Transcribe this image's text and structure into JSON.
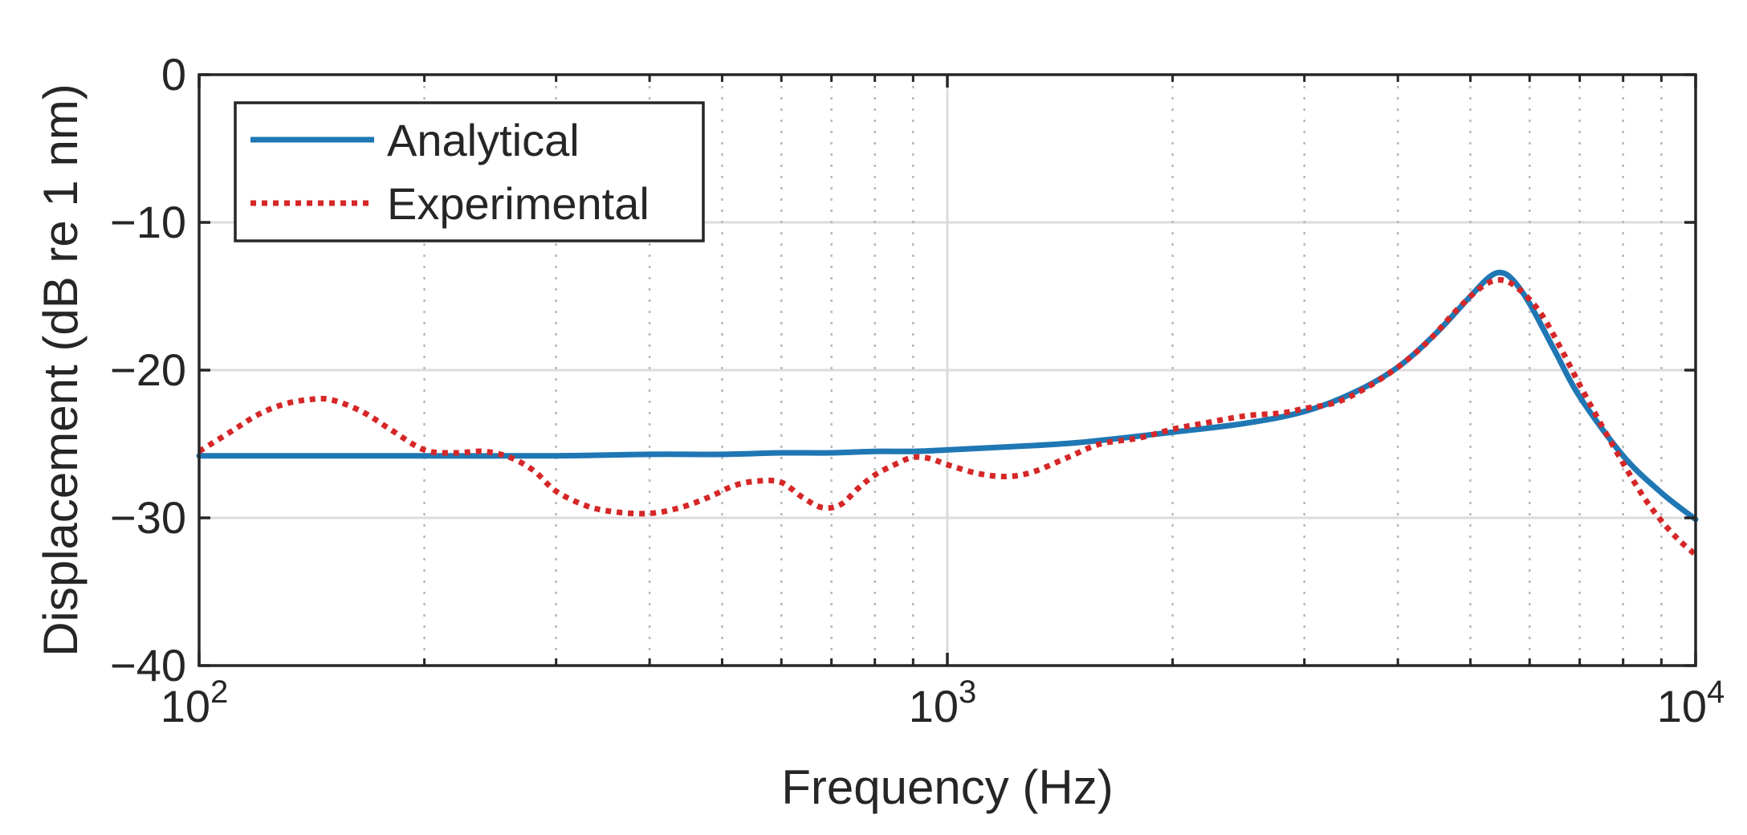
{
  "chart_data": {
    "type": "line",
    "title": "",
    "xlabel": "Frequency (Hz)",
    "ylabel": "Displacement (dB re 1 nm)",
    "xscale": "log",
    "xlim": [
      100,
      10000
    ],
    "ylim": [
      -40,
      0
    ],
    "grid": true,
    "legend_position": "top-left",
    "x_ticks": [
      {
        "value": 100,
        "base": "10",
        "exp": "2"
      },
      {
        "value": 1000,
        "base": "10",
        "exp": "3"
      },
      {
        "value": 10000,
        "base": "10",
        "exp": "4"
      }
    ],
    "y_ticks": [
      {
        "value": 0,
        "label": "0"
      },
      {
        "value": -10,
        "label": "−10"
      },
      {
        "value": -20,
        "label": "−20"
      },
      {
        "value": -30,
        "label": "−30"
      },
      {
        "value": -40,
        "label": "−40"
      }
    ],
    "series": [
      {
        "name": "Analytical",
        "color": "#1f77b4",
        "style": "solid",
        "x": [
          100,
          150,
          200,
          300,
          400,
          500,
          600,
          700,
          800,
          900,
          1000,
          1200,
          1500,
          2000,
          2500,
          3000,
          3500,
          4000,
          4500,
          5000,
          5300,
          5500,
          5700,
          6000,
          6500,
          7000,
          8000,
          9000,
          10000
        ],
        "y": [
          -25.8,
          -25.8,
          -25.8,
          -25.8,
          -25.7,
          -25.7,
          -25.6,
          -25.6,
          -25.5,
          -25.5,
          -25.4,
          -25.2,
          -24.9,
          -24.2,
          -23.6,
          -22.8,
          -21.5,
          -19.8,
          -17.5,
          -15.0,
          -13.7,
          -13.4,
          -13.9,
          -15.5,
          -18.8,
          -21.8,
          -25.8,
          -28.3,
          -30.1
        ]
      },
      {
        "name": "Experimental",
        "color": "#d62728",
        "style": "dotted",
        "x": [
          100,
          110,
          120,
          130,
          140,
          150,
          165,
          180,
          200,
          220,
          240,
          260,
          280,
          300,
          330,
          360,
          400,
          440,
          480,
          520,
          560,
          600,
          640,
          680,
          720,
          760,
          800,
          850,
          900,
          950,
          1000,
          1100,
          1200,
          1300,
          1450,
          1600,
          1800,
          2000,
          2200,
          2500,
          2800,
          3000,
          3300,
          3600,
          4000,
          4400,
          4800,
          5200,
          5500,
          5800,
          6200,
          6600,
          7000,
          7500,
          8000,
          8500,
          9000,
          9500,
          10000
        ],
        "y": [
          -25.5,
          -24.2,
          -23.0,
          -22.3,
          -22.0,
          -22.0,
          -22.8,
          -24.0,
          -25.4,
          -25.6,
          -25.5,
          -25.9,
          -26.8,
          -28.2,
          -29.2,
          -29.6,
          -29.7,
          -29.3,
          -28.6,
          -27.8,
          -27.5,
          -27.6,
          -28.6,
          -29.3,
          -29.1,
          -28.0,
          -27.1,
          -26.4,
          -25.9,
          -26.0,
          -26.4,
          -27.0,
          -27.2,
          -26.9,
          -25.9,
          -25.0,
          -24.6,
          -24.0,
          -23.6,
          -23.1,
          -22.9,
          -22.6,
          -22.2,
          -21.3,
          -19.8,
          -18.0,
          -15.9,
          -14.3,
          -13.9,
          -14.5,
          -16.1,
          -18.5,
          -21.0,
          -23.8,
          -26.3,
          -28.5,
          -30.2,
          -31.5,
          -32.5
        ]
      }
    ]
  }
}
